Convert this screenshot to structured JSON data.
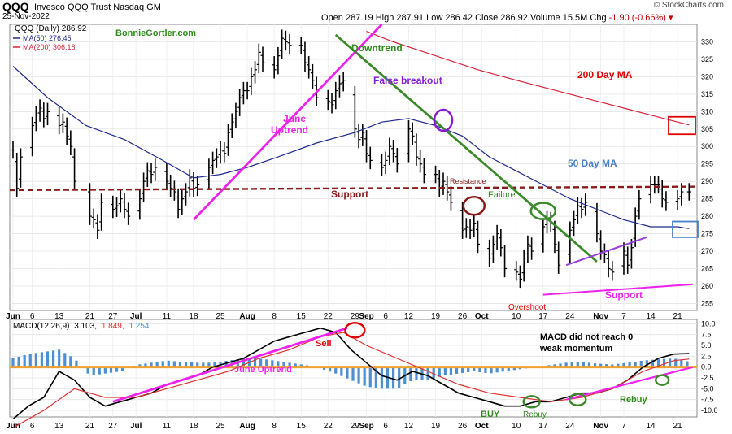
{
  "header": {
    "symbol": "QQQ",
    "name": "Invesco QQQ Trust Nasdaq GM",
    "date": "25-Nov-2022",
    "open_label": "Open",
    "open": "287.19",
    "high_label": "High",
    "high": "287.91",
    "low_label": "Low",
    "low": "286.42",
    "close_label": "Close",
    "close": "286.92",
    "volume_label": "Volume",
    "volume": "15.5M",
    "chg_label": "Chg",
    "chg": "-1.90 (-0.66%)",
    "copyright": "© StockCharts.com"
  },
  "legend": {
    "main": "QQQ (Daily) 286.92",
    "ma50": "MA(50) 276.45",
    "ma200": "MA(200) 306.18",
    "macd_prefix": "MACD(12,26,9)",
    "macd_v1": "3.103,",
    "macd_v2": "1.849,",
    "macd_v3": "1.254"
  },
  "annotations": {
    "watermark": "BonnieGortler.com",
    "downtrend": "Downtrend",
    "false_breakout": "False breakout",
    "ma200": "200 Day MA",
    "june_uptrend_1": "June",
    "june_uptrend_2": "Uptrend",
    "ma50": "50 Day MA",
    "resistance": "Resistance",
    "support": "Support",
    "failure": "Failure",
    "support_low": "Support",
    "overshoot": "Overshoot",
    "sell": "Sell",
    "macd_note_1": "MACD did not reach 0",
    "macd_note_2": "weak momentum",
    "june_uptrend_macd": "June Uptrend",
    "buy": "BUY",
    "rebuy_1": "Rebuy",
    "rebuy_2": "Rebuy"
  },
  "colors": {
    "price_bar": "#000000",
    "ma50": "#1f2a8c",
    "ma200": "#d6243a",
    "macd_line": "#000000",
    "signal_line": "#e03030",
    "histogram": "#4d8fd0",
    "zero_line": "#f0a030",
    "support_line": "#8b1a1a",
    "downtrend_line": "#3b8a2a",
    "uptrend_line": "#ee22ee",
    "false_breakout": "#8a1ad8",
    "blue_label": "#4a7fc9",
    "red_label": "#e00000",
    "green_label": "#2f8a1e"
  },
  "chart_data": [
    {
      "type": "bar",
      "title": "QQQ (Daily) 286.92",
      "xlabel": "",
      "ylabel": "",
      "ylim": [
        253,
        335
      ],
      "yticks": [
        255,
        260,
        265,
        270,
        275,
        280,
        285,
        290,
        295,
        300,
        305,
        310,
        315,
        320,
        325,
        330
      ],
      "x_tick_labels": [
        "Jun",
        "6",
        "13",
        "21",
        "27",
        "Jul",
        "11",
        "18",
        "25",
        "Aug",
        "8",
        "15",
        "22",
        "29",
        "Sep",
        "6",
        "12",
        "19",
        "26",
        "Oct",
        "10",
        "17",
        "24",
        "Nov",
        "7",
        "14",
        "21"
      ],
      "x_tick_days": [
        1,
        6,
        13,
        21,
        27,
        33,
        41,
        48,
        55,
        62,
        69,
        76,
        83,
        90,
        93,
        98,
        104,
        111,
        118,
        123,
        132,
        139,
        146,
        154,
        160,
        167,
        174
      ],
      "ohlc_close_series": {
        "name": "QQQ",
        "days": [
          1,
          2,
          3,
          6,
          7,
          8,
          9,
          10,
          13,
          14,
          15,
          16,
          17,
          21,
          22,
          23,
          24,
          27,
          28,
          29,
          30,
          31,
          34,
          35,
          36,
          37,
          38,
          41,
          42,
          43,
          44,
          45,
          46,
          47,
          48,
          49,
          52,
          53,
          54,
          55,
          56,
          57,
          58,
          59,
          60,
          61,
          62,
          63,
          64,
          65,
          66,
          69,
          70,
          71,
          72,
          73,
          76,
          77,
          78,
          79,
          80,
          83,
          84,
          85,
          86,
          87,
          90,
          91,
          92,
          93,
          94,
          97,
          98,
          99,
          100,
          101,
          104,
          105,
          106,
          107,
          108,
          111,
          112,
          113,
          114,
          115,
          118,
          119,
          120,
          121,
          122,
          125,
          126,
          127,
          128,
          129,
          132,
          133,
          134,
          135,
          136,
          139,
          140,
          141,
          142,
          143,
          146,
          147,
          148,
          149,
          150,
          153,
          154,
          155,
          156,
          157,
          160,
          161,
          162,
          163,
          164,
          167,
          168,
          169,
          170,
          171,
          174,
          175,
          177
        ],
        "close": [
          299,
          288,
          297,
          306,
          309,
          311,
          308,
          310,
          306,
          307,
          303,
          300,
          290,
          280,
          279,
          276,
          284,
          282,
          283,
          285,
          282,
          280,
          285,
          290,
          293,
          292,
          294,
          290,
          288,
          287,
          282,
          285,
          287,
          291,
          288,
          289,
          294,
          296,
          297,
          299,
          298,
          304,
          307,
          310,
          314,
          316,
          316,
          320,
          322,
          327,
          324,
          322,
          326,
          331,
          330,
          329,
          329,
          324,
          322,
          319,
          314,
          313,
          312,
          316,
          318,
          319,
          305,
          302,
          304,
          298,
          296,
          294,
          296,
          300,
          298,
          295,
          305,
          303,
          297,
          295,
          292,
          292,
          288,
          290,
          287,
          284,
          276,
          277,
          276,
          278,
          272,
          268,
          272,
          275,
          271,
          265,
          264,
          262,
          268,
          272,
          270,
          277,
          279,
          278,
          272,
          266,
          276,
          279,
          283,
          282,
          284,
          275,
          270,
          269,
          265,
          264,
          270,
          266,
          271,
          280,
          285,
          289,
          289,
          289,
          285,
          284,
          285,
          287,
          287
        ]
      },
      "series": [
        {
          "name": "MA(50) 276.45",
          "days": [
            1,
            10,
            20,
            30,
            40,
            48,
            55,
            62,
            70,
            80,
            90,
            97,
            104,
            111,
            118,
            125,
            132,
            139,
            146,
            153,
            160,
            167,
            174,
            177
          ],
          "values": [
            323,
            314,
            306,
            302,
            296,
            291,
            292,
            294,
            297,
            301,
            304,
            307,
            308,
            306,
            303,
            297,
            293,
            289,
            285,
            282,
            279,
            277,
            277,
            276.45
          ]
        },
        {
          "name": "MA(200) 306.18",
          "days": [
            93,
            100,
            111,
            122,
            132,
            139,
            146,
            153,
            160,
            167,
            174,
            177
          ],
          "values": [
            333,
            330,
            326,
            322,
            319,
            317,
            315,
            313,
            311,
            309,
            307,
            306.18
          ]
        }
      ]
    },
    {
      "type": "line",
      "title": "MACD(12,26,9) 3.103, 1.849, 1.254",
      "xlabel": "",
      "ylabel": "",
      "ylim": [
        -11.5,
        11
      ],
      "yticks": [
        -10.0,
        -7.5,
        -5.0,
        -2.5,
        0.0,
        2.5,
        5.0,
        7.5,
        10.0
      ],
      "series": [
        {
          "name": "MACD",
          "days": [
            1,
            5,
            9,
            13,
            17,
            21,
            25,
            29,
            33,
            37,
            41,
            45,
            49,
            53,
            57,
            61,
            65,
            69,
            73,
            77,
            81,
            85,
            89,
            93,
            97,
            101,
            105,
            109,
            113,
            117,
            121,
            125,
            129,
            133,
            137,
            141,
            145,
            149,
            153,
            157,
            161,
            165,
            169,
            173,
            177
          ],
          "values": [
            -12,
            -9,
            -7,
            -1,
            -3,
            -7,
            -9,
            -8,
            -7,
            -6,
            -4,
            -3,
            -2,
            0,
            1,
            2,
            4,
            6,
            7,
            8,
            9,
            8,
            4,
            1,
            -2,
            -3,
            -1,
            -2,
            -4,
            -6,
            -7,
            -8,
            -9,
            -9,
            -8,
            -8,
            -7,
            -6,
            -6,
            -5,
            -3,
            0,
            2,
            3,
            3.103
          ]
        },
        {
          "name": "Signal",
          "days": [
            1,
            9,
            17,
            25,
            33,
            41,
            49,
            57,
            65,
            73,
            81,
            87,
            93,
            101,
            109,
            117,
            125,
            133,
            141,
            149,
            157,
            165,
            173,
            177
          ],
          "values": [
            -14,
            -10,
            -5,
            -7,
            -7,
            -5,
            -3,
            -1,
            2,
            4,
            7,
            8,
            5,
            2,
            -1,
            -4,
            -6,
            -7,
            -8,
            -7,
            -5,
            -1,
            1.5,
            1.849
          ]
        },
        {
          "name": "Histogram",
          "days": [
            1,
            5,
            9,
            13,
            17,
            21,
            25,
            29,
            33,
            37,
            41,
            45,
            49,
            53,
            57,
            61,
            65,
            69,
            73,
            77,
            81,
            85,
            89,
            93,
            97,
            101,
            105,
            109,
            113,
            117,
            121,
            125,
            129,
            133,
            137,
            141,
            145,
            149,
            153,
            157,
            161,
            165,
            169,
            173,
            177
          ],
          "values": [
            2,
            3,
            3.5,
            4,
            2,
            -2,
            -1.5,
            -1,
            0.5,
            1,
            1.5,
            1.2,
            1,
            1,
            1.5,
            2,
            2,
            1.5,
            1,
            0.5,
            -0.3,
            -1.5,
            -3,
            -4.5,
            -5,
            -5,
            -3,
            -3,
            -2,
            -1.5,
            -1,
            -1.5,
            -1,
            -0.5,
            0,
            0.5,
            1,
            1.2,
            0.8,
            0.6,
            1,
            1.5,
            1.8,
            2,
            1.254
          ]
        }
      ]
    }
  ]
}
